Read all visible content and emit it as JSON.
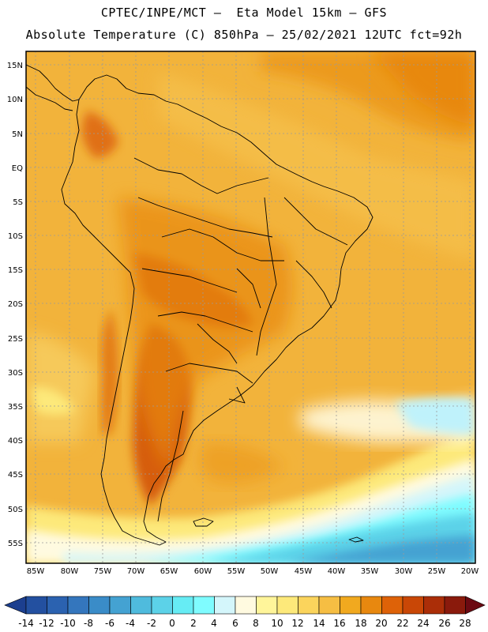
{
  "header": {
    "line1": "CPTEC/INPE/MCT –  Eta Model 15km – GFS",
    "line2": "Absolute Temperature (C) 850hPa – 25/02/2021 12UTC fct=92h"
  },
  "axes": {
    "lat_labels": [
      "15N",
      "10N",
      "5N",
      "EQ",
      "5S",
      "10S",
      "15S",
      "20S",
      "25S",
      "30S",
      "35S",
      "40S",
      "45S",
      "50S",
      "55S"
    ],
    "lon_labels": [
      "85W",
      "80W",
      "75W",
      "70W",
      "65W",
      "60W",
      "55W",
      "50W",
      "45W",
      "40W",
      "35W",
      "30W",
      "25W",
      "20W"
    ]
  },
  "colorbar": {
    "labels": [
      "-14",
      "-12",
      "-10",
      "-8",
      "-6",
      "-4",
      "-2",
      "0",
      "2",
      "4",
      "6",
      "8",
      "10",
      "12",
      "14",
      "16",
      "18",
      "20",
      "22",
      "24",
      "26",
      "28"
    ],
    "colors": [
      "#1c3f8f",
      "#2350a0",
      "#2b62b0",
      "#3476bd",
      "#3a8cc8",
      "#44a2d2",
      "#4fbbdd",
      "#5cd2e8",
      "#66ecf4",
      "#7ffcff",
      "#d4f6fb",
      "#fffae0",
      "#fff59a",
      "#fde97a",
      "#fbd45c",
      "#f6be43",
      "#f1a91f",
      "#e8880f",
      "#de6208",
      "#c94706",
      "#ab2e08",
      "#8a1a0c",
      "#6b0a12"
    ]
  },
  "colors": {
    "frame": "#000000",
    "land_outline": "#000000",
    "grid": "#9a9a9a"
  }
}
